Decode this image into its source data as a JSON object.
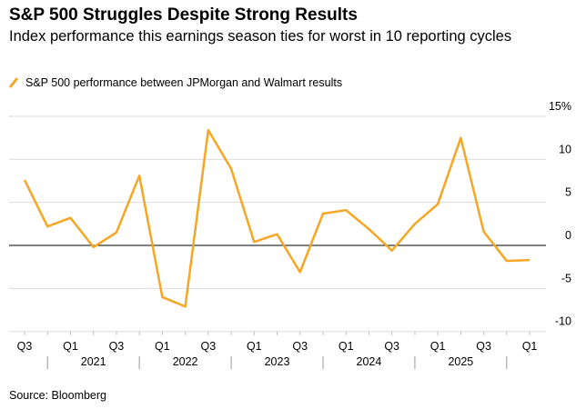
{
  "chart_data": {
    "type": "line",
    "title": "S&P 500 Struggles Despite Strong Results",
    "subtitle": "Index performance this earnings season ties for worst in 10 reporting cycles",
    "source": "Source: Bloomberg",
    "categories": [
      "Q3",
      null,
      "Q1",
      null,
      "Q3",
      null,
      "Q1",
      null,
      "Q3",
      null,
      "Q1",
      null,
      "Q3",
      null,
      "Q1",
      null,
      "Q3",
      null,
      "Q1",
      null,
      "Q3",
      null,
      "Q1"
    ],
    "years": [
      "2021",
      "2022",
      "2023",
      "2024",
      "2025"
    ],
    "series": [
      {
        "name": "S&P 500 performance between JPMorgan and Walmart results",
        "color": "#f5a623",
        "values": [
          7.6,
          2.2,
          3.2,
          -0.2,
          1.5,
          8.1,
          -6.0,
          -7.1,
          13.4,
          8.9,
          0.4,
          1.3,
          -3.1,
          3.7,
          4.1,
          1.9,
          -0.6,
          2.5,
          4.8,
          12.5,
          1.6,
          -1.8,
          -1.7
        ]
      }
    ],
    "ylim": [
      -10,
      15
    ],
    "yticks": [
      {
        "value": 15,
        "label": "15%"
      },
      10,
      5,
      0,
      -5,
      -10
    ],
    "grid": true
  }
}
